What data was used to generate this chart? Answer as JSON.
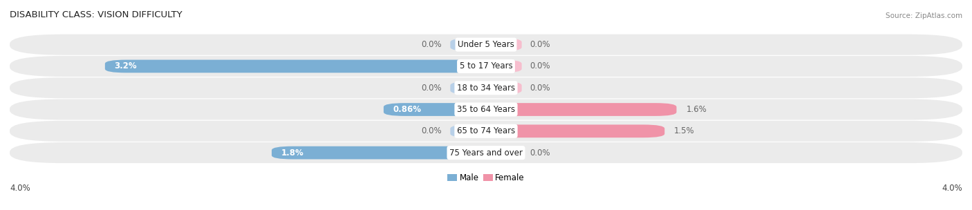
{
  "title": "DISABILITY CLASS: VISION DIFFICULTY",
  "source": "Source: ZipAtlas.com",
  "categories": [
    "Under 5 Years",
    "5 to 17 Years",
    "18 to 34 Years",
    "35 to 64 Years",
    "65 to 74 Years",
    "75 Years and over"
  ],
  "male_values": [
    0.0,
    3.2,
    0.0,
    0.86,
    0.0,
    1.8
  ],
  "female_values": [
    0.0,
    0.0,
    0.0,
    1.6,
    1.5,
    0.0
  ],
  "male_color": "#7bafd4",
  "female_color": "#f093a8",
  "male_color_light": "#b8d0e8",
  "female_color_light": "#f7bece",
  "row_bg_color": "#ebebeb",
  "row_bg_alt": "#e0e0e0",
  "xlim": 4.0,
  "x_axis_label_left": "4.0%",
  "x_axis_label_right": "4.0%",
  "title_fontsize": 9.5,
  "label_fontsize": 8.5,
  "tick_fontsize": 8.5,
  "cat_fontsize": 8.5,
  "stub_size": 0.3
}
